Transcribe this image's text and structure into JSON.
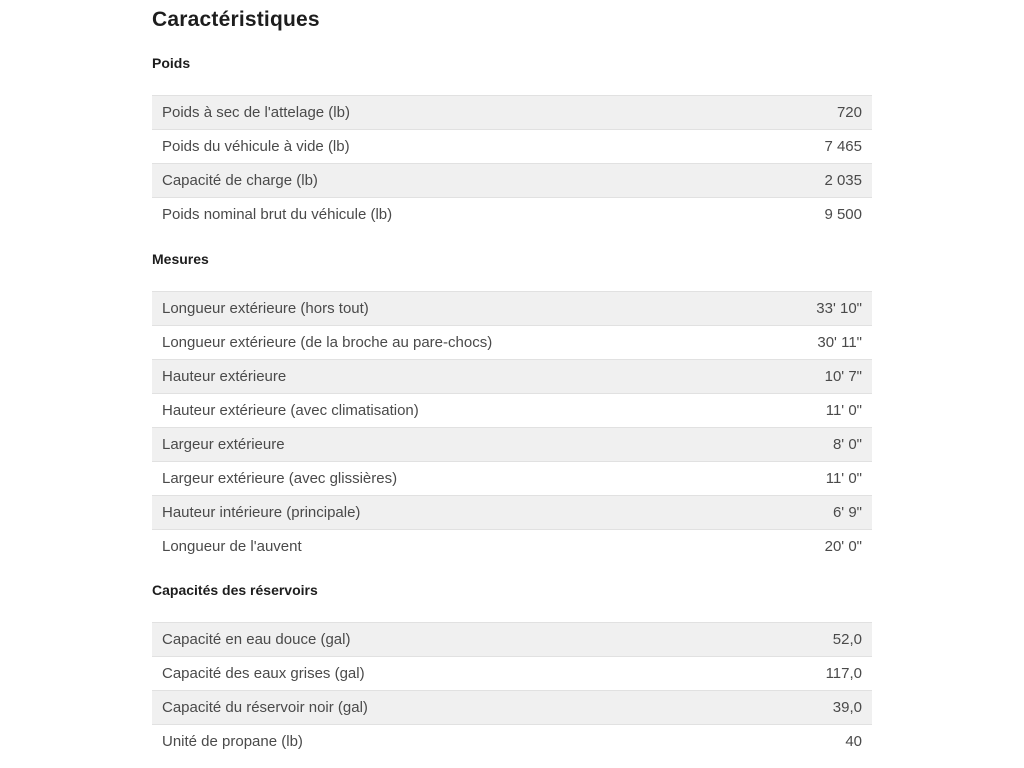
{
  "page": {
    "title": "Caractéristiques"
  },
  "theme": {
    "bg": "#ffffff",
    "stripe": "#f0f0f0",
    "row-border": "#e1e1e1",
    "text": "#4a4a4a",
    "heading": "#1d1d1d"
  },
  "sections": [
    {
      "heading": "Poids",
      "rows": [
        {
          "label": "Poids à sec de l'attelage (lb)",
          "value": "720"
        },
        {
          "label": "Poids du véhicule à vide (lb)",
          "value": "7 465"
        },
        {
          "label": "Capacité de charge (lb)",
          "value": "2 035"
        },
        {
          "label": "Poids nominal brut du véhicule (lb)",
          "value": "9 500"
        }
      ]
    },
    {
      "heading": "Mesures",
      "rows": [
        {
          "label": "Longueur extérieure (hors tout)",
          "value": "33' 10\""
        },
        {
          "label": "Longueur extérieure (de la broche au pare-chocs)",
          "value": "30' 11\""
        },
        {
          "label": "Hauteur extérieure",
          "value": "10' 7\""
        },
        {
          "label": "Hauteur extérieure (avec climatisation)",
          "value": "11' 0\""
        },
        {
          "label": "Largeur extérieure",
          "value": "8' 0\""
        },
        {
          "label": "Largeur extérieure (avec glissières)",
          "value": "11' 0\""
        },
        {
          "label": "Hauteur intérieure (principale)",
          "value": "6' 9\""
        },
        {
          "label": "Longueur de l'auvent",
          "value": "20' 0\""
        }
      ]
    },
    {
      "heading": "Capacités des réservoirs",
      "rows": [
        {
          "label": "Capacité en eau douce (gal)",
          "value": "52,0"
        },
        {
          "label": "Capacité des eaux grises (gal)",
          "value": "117,0"
        },
        {
          "label": "Capacité du réservoir noir (gal)",
          "value": "39,0"
        },
        {
          "label": "Unité de propane (lb)",
          "value": "40"
        }
      ]
    }
  ]
}
